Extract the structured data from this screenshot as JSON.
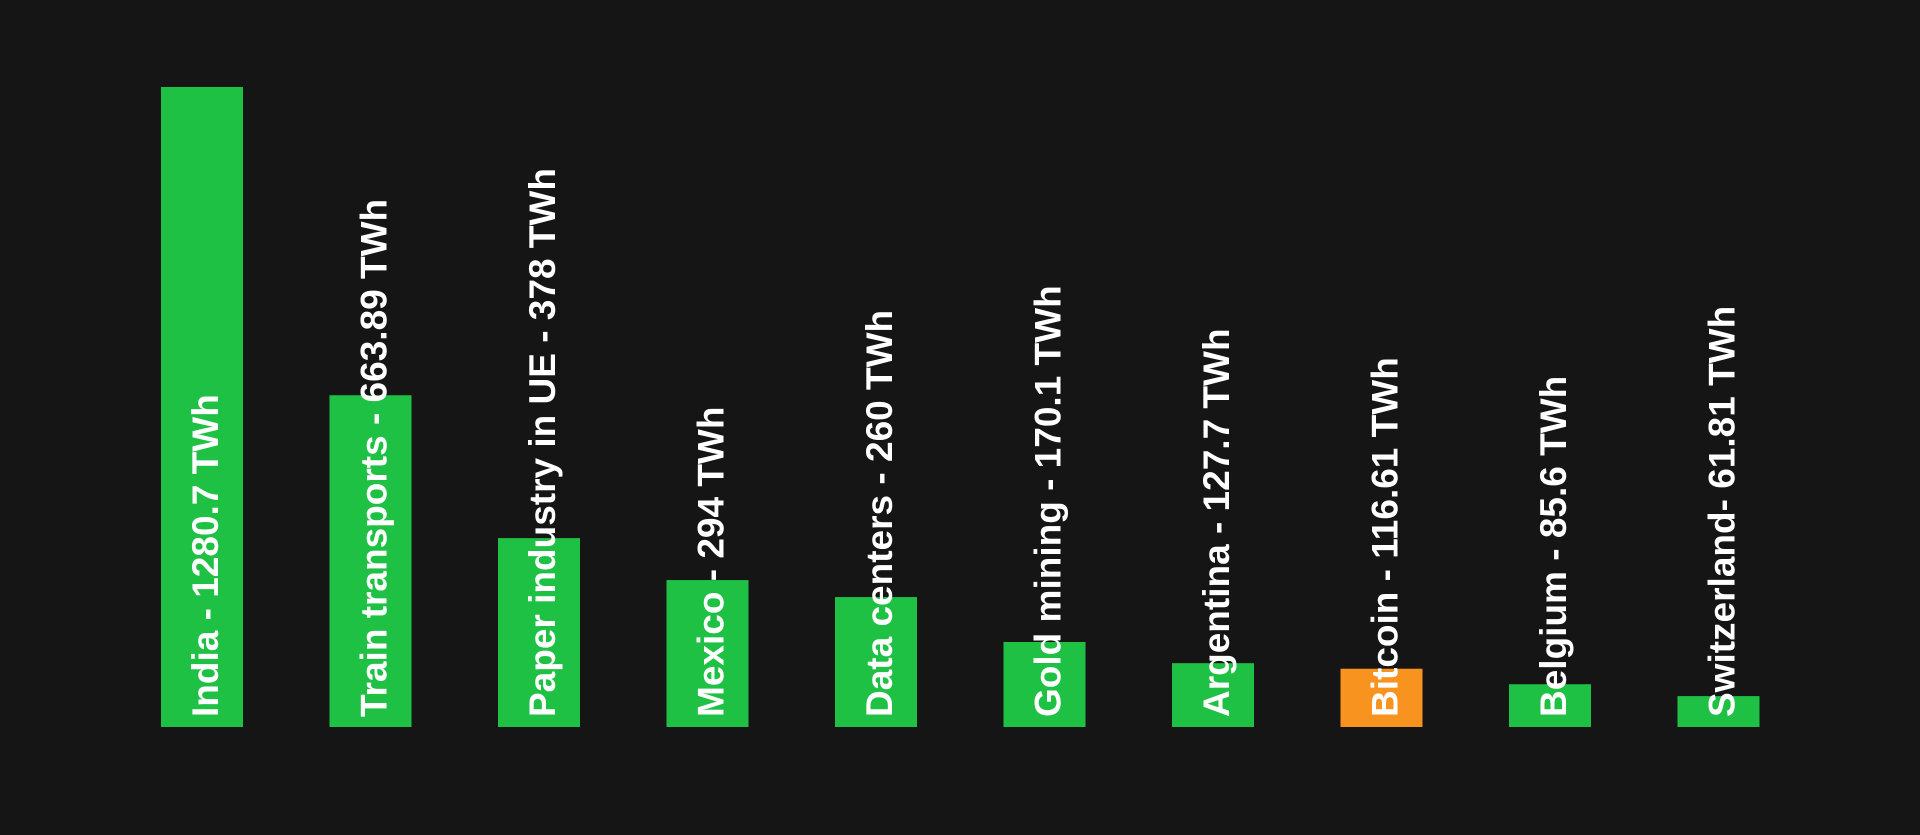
{
  "background_color": "#151515",
  "label_color": "#ffffff",
  "chart_data": {
    "type": "bar",
    "orientation": "vertical",
    "title": "",
    "xlabel": "",
    "ylabel": "",
    "unit": "TWh",
    "grid": false,
    "legend": "none",
    "ylim": [
      0,
      1280.7
    ],
    "categories": [
      "India",
      "Train transports",
      "Paper industry in UE",
      "Mexico",
      "Data centers",
      "Gold mining",
      "Argentina",
      "Bitcoin",
      "Belgium",
      "Switzerland"
    ],
    "values": [
      1280.7,
      663.89,
      378,
      294,
      260,
      170.1,
      127.7,
      116.61,
      85.6,
      61.81
    ],
    "labels": [
      "India - 1280.7 TWh",
      "Train transports - 663.89 TWh",
      "Paper industry in UE - 378 TWh",
      "Mexico - 294 TWh",
      "Data centers - 260 TWh",
      "Gold mining - 170.1 TWh",
      "Argentina - 127.7 TWh",
      "Bitcoin - 116.61 TWh",
      "Belgium - 85.6 TWh",
      "Switzerland- 61.81 TWh"
    ],
    "colors": [
      "#1fc145",
      "#1fc145",
      "#1fc145",
      "#1fc145",
      "#1fc145",
      "#1fc145",
      "#1fc145",
      "#f7931e",
      "#1fc145",
      "#1fc145"
    ]
  }
}
